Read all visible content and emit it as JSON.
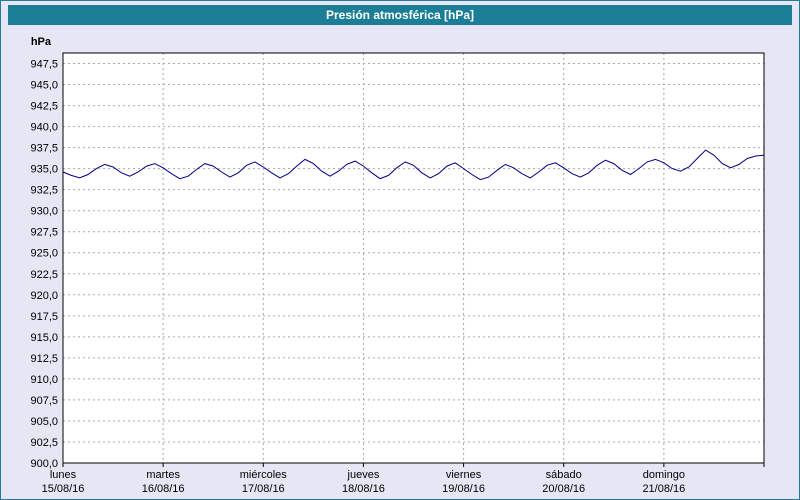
{
  "title": "Presión atmosférica [hPa]",
  "colors": {
    "titlebar": "#1b7e96",
    "window_border": "#1b7e96",
    "background": "#e6e6f5",
    "plot_background": "#ffffff",
    "plot_border": "#000000",
    "grid": "#a9a9a9",
    "line": "#000080",
    "label": "#000000"
  },
  "chart_data": {
    "type": "line",
    "title": "Presión atmosférica [hPa]",
    "ylabel": "hPa",
    "xlabel": "",
    "grid": true,
    "legend": "none",
    "ylim": [
      900.0,
      947.5
    ],
    "ytick_step": 2.5,
    "yticks": [
      {
        "value": 947.5,
        "label": "947,5"
      },
      {
        "value": 945.0,
        "label": "945,0"
      },
      {
        "value": 942.5,
        "label": "942,5"
      },
      {
        "value": 940.0,
        "label": "940,0"
      },
      {
        "value": 937.5,
        "label": "937,5"
      },
      {
        "value": 935.0,
        "label": "935,0"
      },
      {
        "value": 932.5,
        "label": "932,5"
      },
      {
        "value": 930.0,
        "label": "930,0"
      },
      {
        "value": 927.5,
        "label": "927,5"
      },
      {
        "value": 925.0,
        "label": "925,0"
      },
      {
        "value": 922.5,
        "label": "922,5"
      },
      {
        "value": 920.0,
        "label": "920,0"
      },
      {
        "value": 917.5,
        "label": "917,5"
      },
      {
        "value": 915.0,
        "label": "915,0"
      },
      {
        "value": 912.5,
        "label": "912,5"
      },
      {
        "value": 910.0,
        "label": "910,0"
      },
      {
        "value": 907.5,
        "label": "907,5"
      },
      {
        "value": 905.0,
        "label": "905,0"
      },
      {
        "value": 902.5,
        "label": "902,5"
      },
      {
        "value": 900.0,
        "label": "900,0"
      }
    ],
    "x_categories": [
      {
        "day": "lunes",
        "date": "15/08/16"
      },
      {
        "day": "martes",
        "date": "16/08/16"
      },
      {
        "day": "miércoles",
        "date": "17/08/16"
      },
      {
        "day": "jueves",
        "date": "18/08/16"
      },
      {
        "day": "viernes",
        "date": "19/08/16"
      },
      {
        "day": "sábado",
        "date": "20/08/16"
      },
      {
        "day": "domingo",
        "date": "21/08/16"
      }
    ],
    "sampling": "12 samples per day (every 2 hours), 7 days",
    "values": [
      934.6,
      934.2,
      933.9,
      934.3,
      935.0,
      935.5,
      935.2,
      934.5,
      934.1,
      934.6,
      935.3,
      935.6,
      935.1,
      934.4,
      933.8,
      934.1,
      934.9,
      935.6,
      935.3,
      934.6,
      934.0,
      934.5,
      935.4,
      935.8,
      935.2,
      934.5,
      933.9,
      934.4,
      935.3,
      936.1,
      935.6,
      934.7,
      934.1,
      934.7,
      935.5,
      935.9,
      935.3,
      934.5,
      933.8,
      934.2,
      935.1,
      935.8,
      935.4,
      934.5,
      933.9,
      934.4,
      935.3,
      935.7,
      935.0,
      934.3,
      933.7,
      934.0,
      934.8,
      935.5,
      935.1,
      934.4,
      933.9,
      934.6,
      935.4,
      935.7,
      935.1,
      934.4,
      934.0,
      934.5,
      935.4,
      936.0,
      935.6,
      934.8,
      934.3,
      935.0,
      935.8,
      936.1,
      935.7,
      935.0,
      934.7,
      935.2,
      936.2,
      937.2,
      936.6,
      935.6,
      935.1,
      935.5,
      936.2,
      936.5,
      936.6
    ]
  }
}
